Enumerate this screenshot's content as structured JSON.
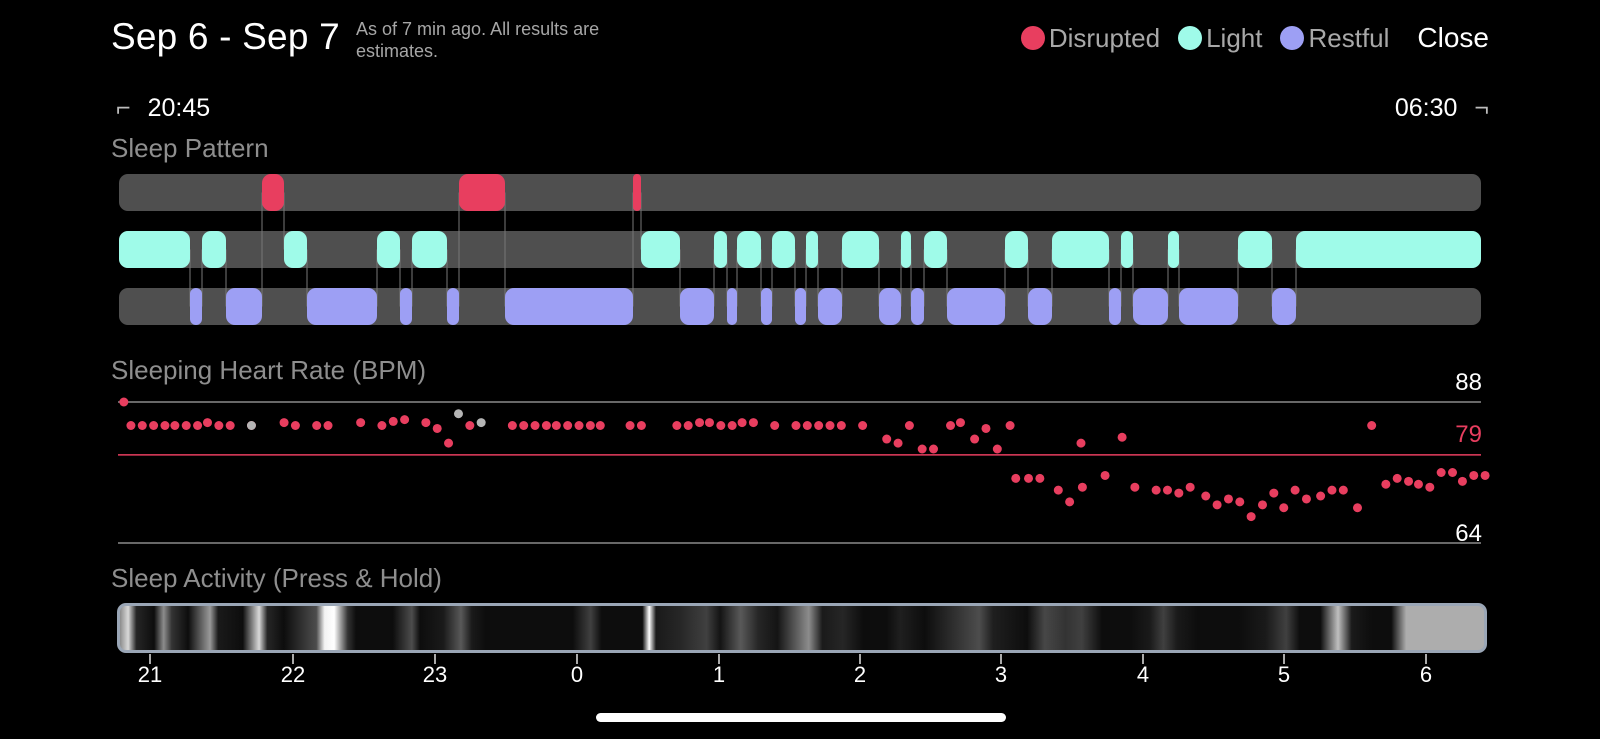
{
  "header": {
    "date_range": "Sep 6 - Sep 7",
    "as_of_note": "As of 7 min ago. All results are estimates.",
    "close_label": "Close"
  },
  "legend": [
    {
      "label": "Disrupted",
      "color": "#e83e5f"
    },
    {
      "label": "Light",
      "color": "#9ffbe9"
    },
    {
      "label": "Restful",
      "color": "#9d9ff4"
    }
  ],
  "time_range": {
    "start": "20:45",
    "end": "06:30"
  },
  "sections": {
    "sleep_pattern": "Sleep Pattern",
    "heart_rate": "Sleeping Heart Rate (BPM)",
    "activity": "Sleep Activity (Press & Hold)"
  },
  "heart_rate_scale": {
    "max": "88",
    "avg": "79",
    "min": "64"
  },
  "hour_labels": [
    "21",
    "22",
    "23",
    "0",
    "1",
    "2",
    "3",
    "4",
    "5",
    "6"
  ],
  "icons": {
    "start_bracket": "bracket-start-icon",
    "end_bracket": "bracket-end-icon"
  },
  "colors": {
    "disrupted": "#e83e5f",
    "light": "#9ffbe9",
    "restful": "#9d9ff4",
    "track": "#4f4f4f",
    "gray_point": "#b5b5b5"
  },
  "chart_data": {
    "type": "scatter",
    "title": "Sleeping Heart Rate (BPM)",
    "x_unit": "hours from 20:45",
    "ylim": [
      64,
      88
    ],
    "reference_lines": [
      88,
      79,
      64
    ],
    "series": [
      {
        "values": [
          [
            0.02,
            88
          ],
          [
            0.07,
            84
          ],
          [
            0.15,
            84
          ],
          [
            0.23,
            84
          ],
          [
            0.31,
            84
          ],
          [
            0.38,
            84
          ],
          [
            0.46,
            84
          ],
          [
            0.54,
            84
          ],
          [
            0.61,
            84.5
          ],
          [
            0.69,
            84
          ],
          [
            0.77,
            84
          ],
          [
            0.92,
            84
          ],
          [
            1.15,
            84.5
          ],
          [
            1.23,
            84
          ],
          [
            1.38,
            84
          ],
          [
            1.46,
            84
          ],
          [
            1.69,
            84.5
          ],
          [
            1.84,
            84
          ],
          [
            1.92,
            84.7
          ],
          [
            2.0,
            85
          ],
          [
            2.15,
            84.5
          ],
          [
            2.23,
            83.5
          ],
          [
            2.31,
            81
          ],
          [
            2.46,
            84
          ],
          [
            2.76,
            84
          ],
          [
            2.84,
            84
          ],
          [
            2.92,
            84
          ],
          [
            3.0,
            84
          ],
          [
            3.07,
            84
          ],
          [
            3.15,
            84
          ],
          [
            3.23,
            84
          ],
          [
            3.31,
            84
          ],
          [
            3.38,
            84
          ],
          [
            3.59,
            84
          ],
          [
            3.67,
            84
          ],
          [
            3.92,
            84
          ],
          [
            4.0,
            84
          ],
          [
            4.08,
            84.5
          ],
          [
            4.15,
            84.5
          ],
          [
            4.23,
            84
          ],
          [
            4.31,
            84
          ],
          [
            4.38,
            84.5
          ],
          [
            4.46,
            84.5
          ],
          [
            4.61,
            84
          ],
          [
            4.76,
            84
          ],
          [
            4.84,
            84
          ],
          [
            4.92,
            84
          ],
          [
            5.0,
            84
          ],
          [
            5.08,
            84
          ],
          [
            5.23,
            84
          ],
          [
            5.4,
            81.7
          ],
          [
            5.48,
            81
          ],
          [
            5.56,
            84
          ],
          [
            5.65,
            80
          ],
          [
            5.73,
            80
          ],
          [
            5.85,
            84
          ],
          [
            5.92,
            84.5
          ],
          [
            6.02,
            81.7
          ],
          [
            6.1,
            83.5
          ],
          [
            6.18,
            80
          ],
          [
            6.27,
            84
          ],
          [
            6.31,
            75
          ],
          [
            6.4,
            75
          ],
          [
            6.48,
            75
          ],
          [
            6.61,
            73
          ],
          [
            6.69,
            71
          ],
          [
            6.77,
            81
          ],
          [
            6.78,
            73.5
          ],
          [
            6.94,
            75.5
          ],
          [
            7.06,
            82
          ],
          [
            7.15,
            73.5
          ],
          [
            7.3,
            73
          ],
          [
            7.38,
            73
          ],
          [
            7.46,
            72.5
          ],
          [
            7.54,
            73.5
          ],
          [
            7.65,
            72
          ],
          [
            7.73,
            70.5
          ],
          [
            7.81,
            71.5
          ],
          [
            7.89,
            71
          ],
          [
            7.97,
            68.5
          ],
          [
            8.05,
            70.5
          ],
          [
            8.13,
            72.5
          ],
          [
            8.2,
            70
          ],
          [
            8.28,
            73
          ],
          [
            8.36,
            71.5
          ],
          [
            8.46,
            72
          ],
          [
            8.54,
            73
          ],
          [
            8.62,
            73
          ],
          [
            8.72,
            70
          ],
          [
            8.82,
            84
          ],
          [
            8.92,
            74
          ],
          [
            9.0,
            75
          ],
          [
            9.08,
            74.5
          ],
          [
            9.15,
            74
          ],
          [
            9.23,
            73.5
          ],
          [
            9.31,
            76
          ],
          [
            9.39,
            76
          ],
          [
            9.46,
            74.5
          ],
          [
            9.54,
            75.5
          ],
          [
            9.62,
            75.5
          ]
        ],
        "color": "#e83e5f"
      },
      {
        "values": [
          [
            0.92,
            84
          ],
          [
            2.38,
            86
          ],
          [
            2.54,
            84.5
          ]
        ],
        "color": "#b5b5b5"
      }
    ]
  }
}
